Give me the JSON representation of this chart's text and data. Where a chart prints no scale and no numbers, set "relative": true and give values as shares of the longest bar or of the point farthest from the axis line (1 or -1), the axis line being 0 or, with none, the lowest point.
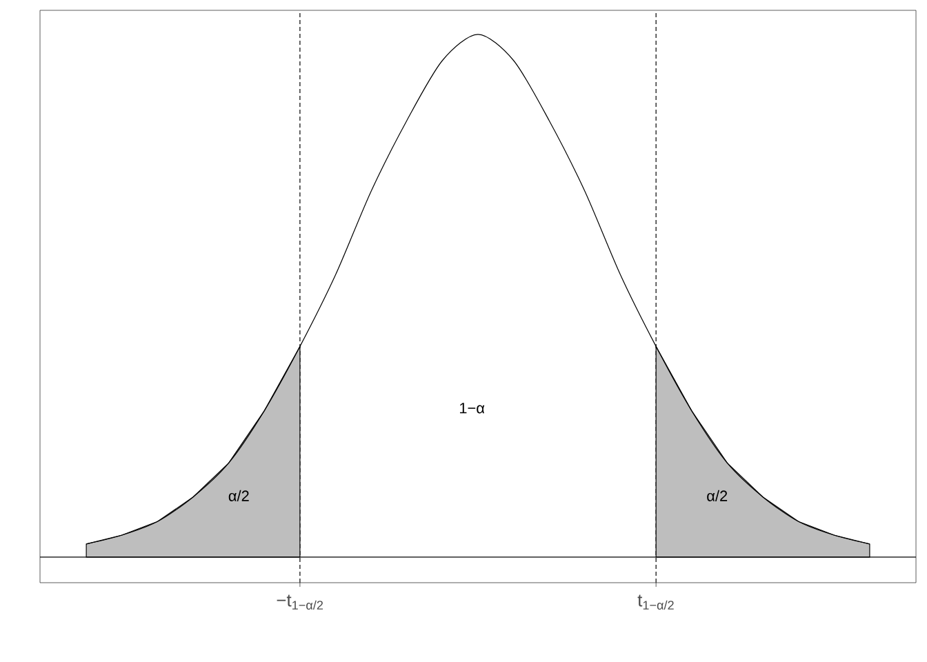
{
  "chart_data": {
    "type": "line",
    "relative": true,
    "grid": "x",
    "categories": [
      null,
      null,
      null,
      null,
      null,
      null,
      "−t$_{1−α/2}$",
      null,
      null,
      null,
      null,
      null,
      null,
      null,
      null,
      null,
      "t$_{1−α/2}$",
      null,
      null,
      null,
      null,
      null,
      null
    ],
    "series": [
      {
        "color": "#000000",
        "values": [
          0.025,
          0.042,
          0.068,
          0.115,
          0.18,
          0.28,
          0.403,
          0.54,
          0.7,
          0.835,
          0.95,
          1,
          0.95,
          0.835,
          0.7,
          0.54,
          0.403,
          0.28,
          0.18,
          0.115,
          0.068,
          0.042,
          0.025
        ]
      },
      {
        "type": "area",
        "color": "#bebebe",
        "values": [
          0.025,
          0.042,
          0.068,
          0.115,
          0.18,
          0.28,
          0.403,
          null,
          null,
          null,
          null,
          null,
          null,
          null,
          null,
          null,
          null,
          null,
          null,
          null,
          null,
          null,
          null
        ]
      },
      {
        "type": "area",
        "color": "#bebebe",
        "values": [
          null,
          null,
          null,
          null,
          null,
          null,
          null,
          null,
          null,
          null,
          null,
          null,
          null,
          null,
          null,
          null,
          0.403,
          0.28,
          0.18,
          0.115,
          0.068,
          0.042,
          0.025
        ]
      }
    ],
    "annotations": [
      "1−α",
      "α/2",
      "α/2"
    ]
  }
}
